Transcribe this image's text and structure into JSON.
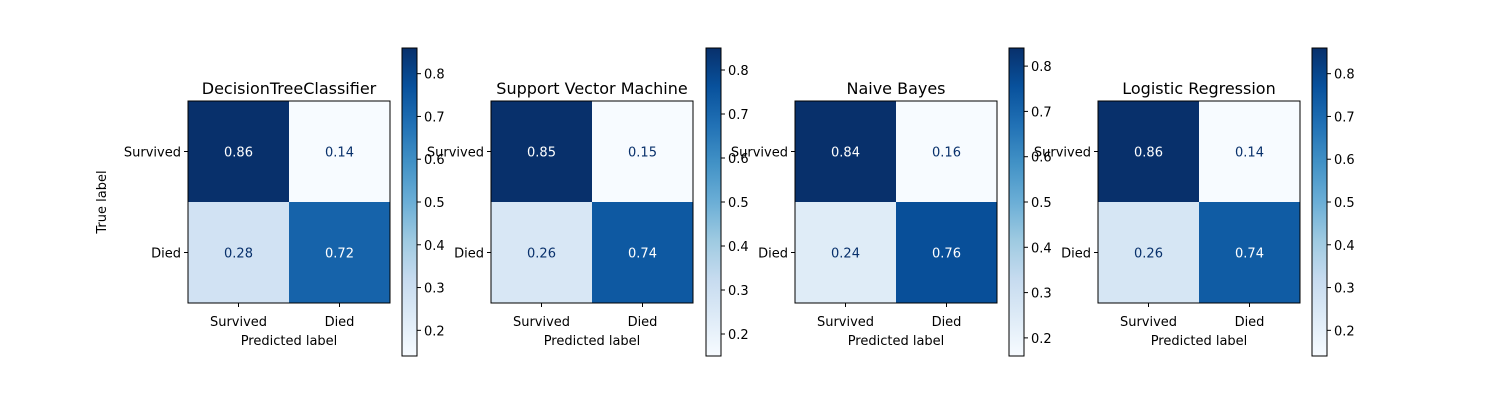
{
  "chart_data": [
    {
      "type": "heatmap",
      "title": "DecisionTreeClassifier",
      "xlabel": "Predicted label",
      "ylabel": "True label",
      "x_categories": [
        "Survived",
        "Died"
      ],
      "y_categories": [
        "Survived",
        "Died"
      ],
      "values": [
        [
          0.86,
          0.14
        ],
        [
          0.28,
          0.72
        ]
      ],
      "value_labels": [
        [
          "0.86",
          "0.14"
        ],
        [
          "0.28",
          "0.72"
        ]
      ],
      "colorbar": {
        "range": [
          0.14,
          0.86
        ],
        "ticks": [
          0.2,
          0.3,
          0.4,
          0.5,
          0.6,
          0.7,
          0.8
        ],
        "tick_labels": [
          "0.2",
          "0.3",
          "0.4",
          "0.5",
          "0.6",
          "0.7",
          "0.8"
        ]
      }
    },
    {
      "type": "heatmap",
      "title": "Support Vector Machine",
      "xlabel": "Predicted label",
      "ylabel": "",
      "x_categories": [
        "Survived",
        "Died"
      ],
      "y_categories": [
        "Survived",
        "Died"
      ],
      "values": [
        [
          0.85,
          0.15
        ],
        [
          0.26,
          0.74
        ]
      ],
      "value_labels": [
        [
          "0.85",
          "0.15"
        ],
        [
          "0.26",
          "0.74"
        ]
      ],
      "colorbar": {
        "range": [
          0.15,
          0.85
        ],
        "ticks": [
          0.2,
          0.3,
          0.4,
          0.5,
          0.6,
          0.7,
          0.8
        ],
        "tick_labels": [
          "0.2",
          "0.3",
          "0.4",
          "0.5",
          "0.6",
          "0.7",
          "0.8"
        ]
      }
    },
    {
      "type": "heatmap",
      "title": "Naive Bayes",
      "xlabel": "Predicted label",
      "ylabel": "",
      "x_categories": [
        "Survived",
        "Died"
      ],
      "y_categories": [
        "Survived",
        "Died"
      ],
      "values": [
        [
          0.84,
          0.16
        ],
        [
          0.24,
          0.76
        ]
      ],
      "value_labels": [
        [
          "0.84",
          "0.16"
        ],
        [
          "0.24",
          "0.76"
        ]
      ],
      "colorbar": {
        "range": [
          0.16,
          0.84
        ],
        "ticks": [
          0.2,
          0.3,
          0.4,
          0.5,
          0.6,
          0.7,
          0.8
        ],
        "tick_labels": [
          "0.2",
          "0.3",
          "0.4",
          "0.5",
          "0.6",
          "0.7",
          "0.8"
        ]
      }
    },
    {
      "type": "heatmap",
      "title": "Logistic Regression",
      "xlabel": "Predicted label",
      "ylabel": "",
      "x_categories": [
        "Survived",
        "Died"
      ],
      "y_categories": [
        "Survived",
        "Died"
      ],
      "values": [
        [
          0.86,
          0.14
        ],
        [
          0.26,
          0.74
        ]
      ],
      "value_labels": [
        [
          "0.86",
          "0.14"
        ],
        [
          "0.26",
          "0.74"
        ]
      ],
      "colorbar": {
        "range": [
          0.14,
          0.86
        ],
        "ticks": [
          0.2,
          0.3,
          0.4,
          0.5,
          0.6,
          0.7,
          0.8
        ],
        "tick_labels": [
          "0.2",
          "0.3",
          "0.4",
          "0.5",
          "0.6",
          "0.7",
          "0.8"
        ]
      }
    }
  ]
}
